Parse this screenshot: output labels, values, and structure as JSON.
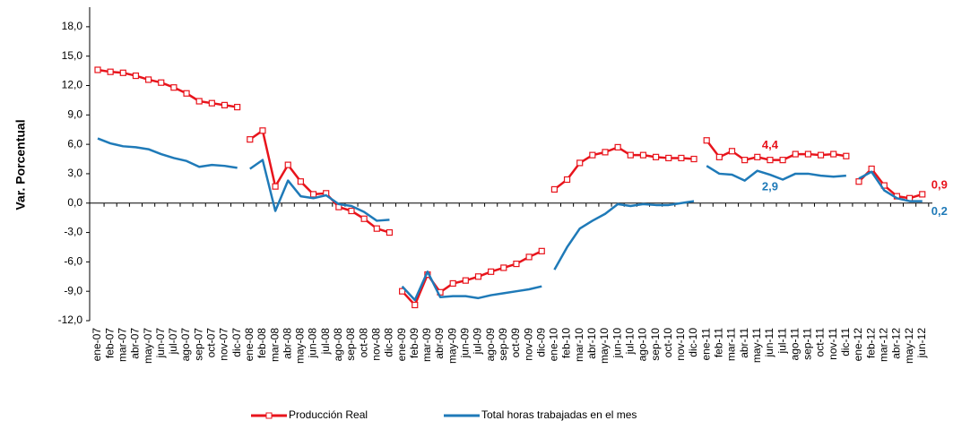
{
  "chart_data": {
    "type": "line",
    "y_label": "Var. Porcentual",
    "categories": [
      [
        "ene-07",
        "feb-07",
        "mar-07",
        "abr-07",
        "may-07",
        "jun-07",
        "jul-07",
        "ago-07",
        "sep-07",
        "oct-07",
        "nov-07",
        "dic-07"
      ],
      [
        "ene-08",
        "feb-08",
        "mar-08",
        "abr-08",
        "may-08",
        "jun-08",
        "jul-08",
        "ago-08",
        "sep-08",
        "oct-08",
        "nov-08",
        "dic-08"
      ],
      [
        "ene-09",
        "feb-09",
        "mar-09",
        "abr-09",
        "may-09",
        "jun-09",
        "jul-09",
        "ago-09",
        "sep-09",
        "oct-09",
        "nov-09",
        "dic-09"
      ],
      [
        "ene-10",
        "feb-10",
        "mar-10",
        "abr-10",
        "may-10",
        "jun-10",
        "jul-10",
        "ago-10",
        "sep-10",
        "oct-10",
        "nov-10",
        "dic-10"
      ],
      [
        "ene-11",
        "feb-11",
        "mar-11",
        "abr-11",
        "may-11",
        "jun-11",
        "jul-11",
        "ago-11",
        "sep-11",
        "oct-11",
        "nov-11",
        "dic-11"
      ],
      [
        "ene-12",
        "feb-12",
        "mar-12",
        "abr-12",
        "may-12",
        "jun-12"
      ]
    ],
    "series": [
      {
        "name": "Producción Real",
        "color": "#e8141c",
        "markers": true,
        "values": [
          [
            13.6,
            13.4,
            13.3,
            13.0,
            12.6,
            12.3,
            11.8,
            11.2,
            10.4,
            10.2,
            10.0,
            9.8
          ],
          [
            6.5,
            7.4,
            1.7,
            3.9,
            2.2,
            0.9,
            1.0,
            -0.4,
            -0.8,
            -1.6,
            -2.6,
            -3.0
          ],
          [
            -9.0,
            -10.4,
            -7.3,
            -9.1,
            -8.2,
            -7.9,
            -7.5,
            -7.0,
            -6.6,
            -6.2,
            -5.5,
            -4.9
          ],
          [
            1.4,
            2.4,
            4.1,
            4.9,
            5.2,
            5.7,
            4.9,
            4.9,
            4.7,
            4.6,
            4.6,
            4.5
          ],
          [
            6.4,
            4.7,
            5.3,
            4.4,
            4.7,
            4.4,
            4.4,
            5.0,
            5.0,
            4.9,
            5.0,
            4.8
          ],
          [
            2.2,
            3.5,
            1.8,
            0.7,
            0.5,
            0.9
          ]
        ],
        "value_labels": [
          [
            null,
            null,
            null,
            null,
            null,
            null,
            null,
            null,
            null,
            null,
            null,
            null
          ],
          [
            null,
            null,
            null,
            null,
            null,
            null,
            null,
            null,
            null,
            null,
            null,
            null
          ],
          [
            null,
            null,
            null,
            null,
            null,
            null,
            null,
            null,
            null,
            null,
            null,
            null
          ],
          [
            null,
            null,
            null,
            null,
            null,
            null,
            null,
            null,
            null,
            null,
            null,
            null
          ],
          [
            null,
            null,
            null,
            null,
            null,
            "4,4",
            null,
            null,
            null,
            null,
            null,
            null
          ],
          [
            null,
            null,
            null,
            null,
            null,
            "0,9"
          ]
        ]
      },
      {
        "name": "Total horas trabajadas en el mes",
        "color": "#1f7ab8",
        "markers": false,
        "values": [
          [
            6.6,
            6.1,
            5.8,
            5.7,
            5.5,
            5.0,
            4.6,
            4.3,
            3.7,
            3.9,
            3.8,
            3.6
          ],
          [
            3.5,
            4.4,
            -0.8,
            2.3,
            0.7,
            0.5,
            0.8,
            -0.1,
            -0.3,
            -0.9,
            -1.8,
            -1.7
          ],
          [
            -8.5,
            -9.9,
            -7.0,
            -9.6,
            -9.5,
            -9.5,
            -9.7,
            -9.4,
            -9.2,
            -9.0,
            -8.8,
            -8.5
          ],
          [
            -6.8,
            -4.5,
            -2.6,
            -1.8,
            -1.1,
            -0.1,
            -0.3,
            -0.1,
            -0.2,
            -0.2,
            0.0,
            0.2
          ],
          [
            3.8,
            3.0,
            2.9,
            2.3,
            3.3,
            2.9,
            2.4,
            3.0,
            3.0,
            2.8,
            2.7,
            2.8
          ],
          [
            2.5,
            3.2,
            1.3,
            0.5,
            0.2,
            0.2
          ]
        ],
        "value_labels": [
          [
            null,
            null,
            null,
            null,
            null,
            null,
            null,
            null,
            null,
            null,
            null,
            null
          ],
          [
            null,
            null,
            null,
            null,
            null,
            null,
            null,
            null,
            null,
            null,
            null,
            null
          ],
          [
            null,
            null,
            null,
            null,
            null,
            null,
            null,
            null,
            null,
            null,
            null,
            null
          ],
          [
            null,
            null,
            null,
            null,
            null,
            null,
            null,
            null,
            null,
            null,
            null,
            null
          ],
          [
            null,
            null,
            null,
            null,
            null,
            "2,9",
            null,
            null,
            null,
            null,
            null,
            null
          ],
          [
            null,
            null,
            null,
            null,
            null,
            "0,2"
          ]
        ]
      }
    ],
    "ylim": [
      -12,
      20
    ],
    "yticks": [
      {
        "value": -12,
        "label": "-12,0"
      },
      {
        "value": -9,
        "label": "-9,0"
      },
      {
        "value": -6,
        "label": "-6,0"
      },
      {
        "value": -3,
        "label": "-3,0"
      },
      {
        "value": 0,
        "label": "0,0"
      },
      {
        "value": 3,
        "label": "3,0"
      },
      {
        "value": 6,
        "label": "6,0"
      },
      {
        "value": 9,
        "label": "9,0"
      },
      {
        "value": 12,
        "label": "12,0"
      },
      {
        "value": 15,
        "label": "15,0"
      },
      {
        "value": 18,
        "label": "18,0"
      }
    ],
    "grid": false,
    "legend": "bottom"
  }
}
